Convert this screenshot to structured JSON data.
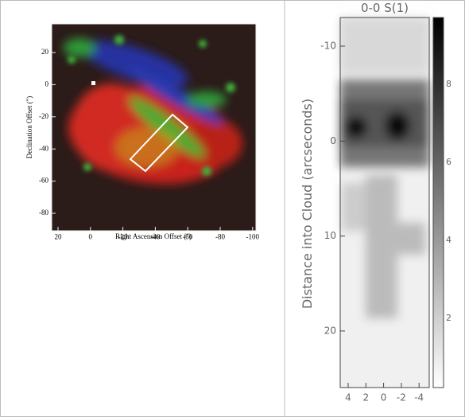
{
  "left_panel": {
    "x_label": "Right Ascension Offset (\")",
    "y_label": "Declination Offset (\")",
    "x_ticks": [
      "20",
      "0",
      "-20",
      "-40",
      "-60",
      "-80",
      "-100"
    ],
    "y_ticks": [
      "20",
      "0",
      "-20",
      "-40",
      "-60",
      "-80"
    ]
  },
  "right_panel": {
    "title": "0-0 S(1)",
    "y_label": "Distance into Cloud (arcseconds)",
    "x_ticks": [
      "4",
      "2",
      "0",
      "-2",
      "-4"
    ],
    "y_ticks": [
      "-10",
      "0",
      "10",
      "20"
    ],
    "colorbar_ticks": [
      "8",
      "6",
      "4",
      "2"
    ]
  }
}
